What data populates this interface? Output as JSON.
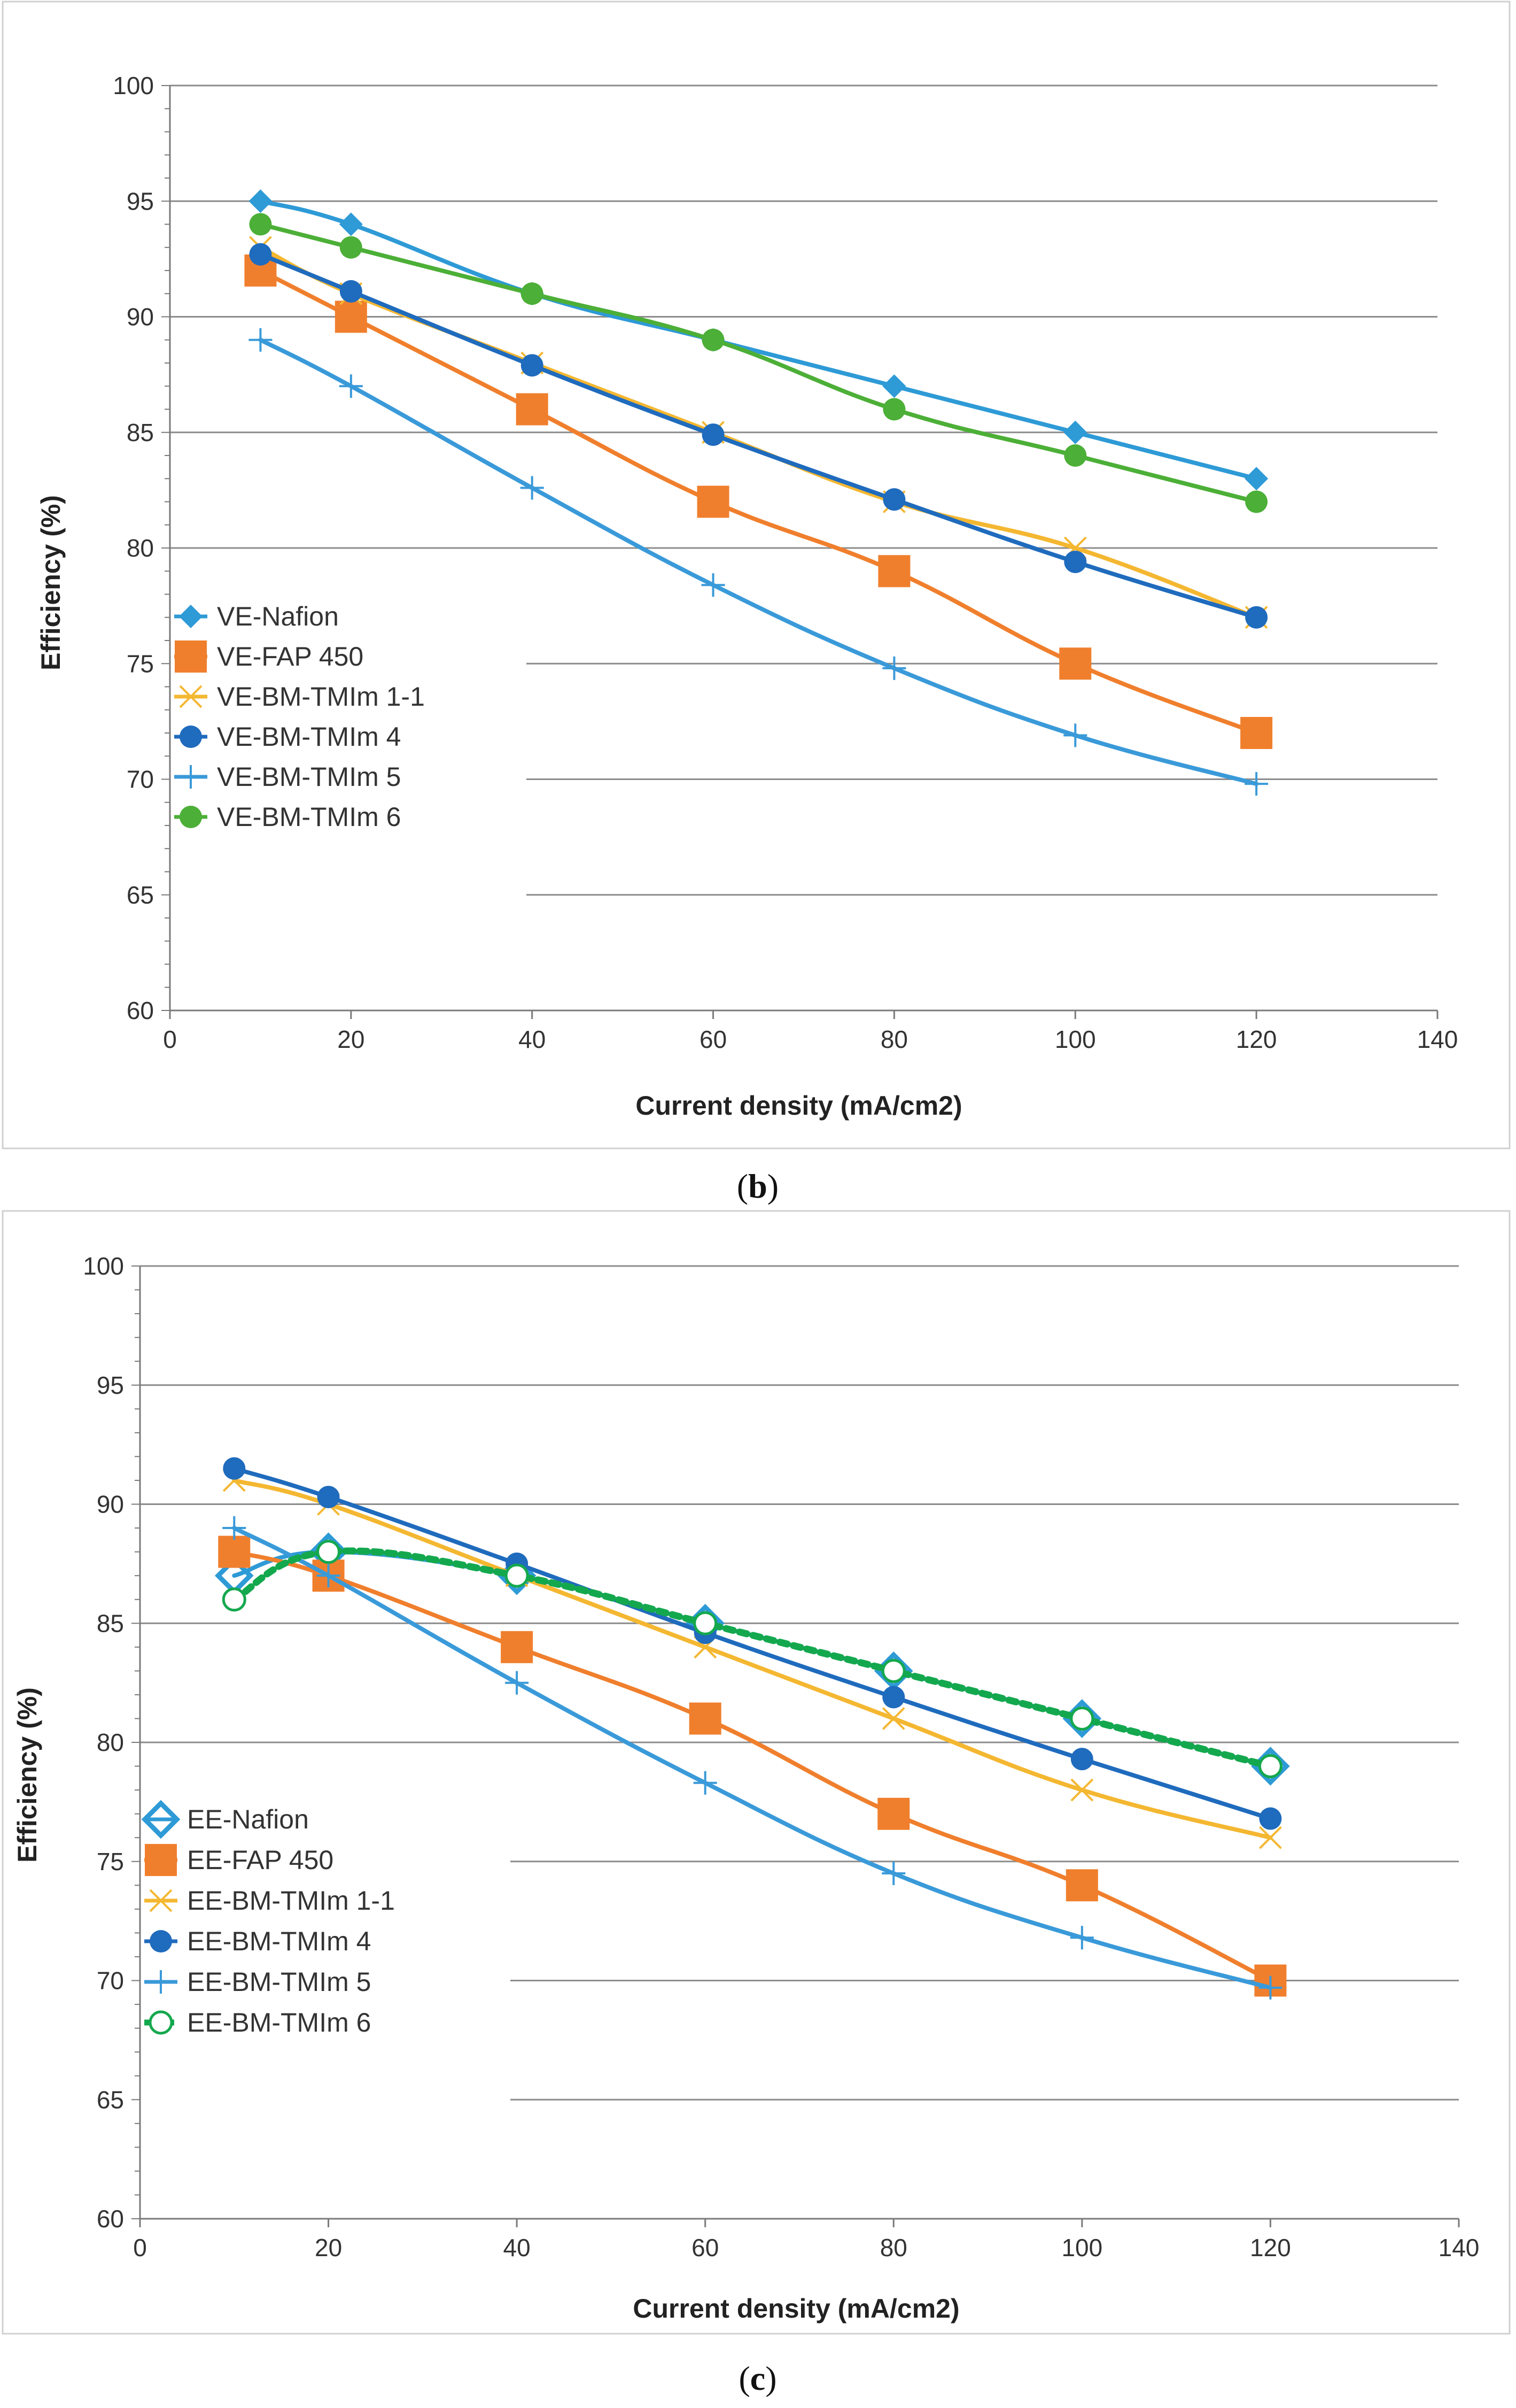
{
  "chart_data": [
    {
      "type": "line",
      "panel_label": "b",
      "xlabel": "Current density (mA/cm2)",
      "ylabel": "Efficiency (%)",
      "xlim": [
        0,
        140
      ],
      "ylim": [
        60,
        100
      ],
      "xticks": [
        0,
        20,
        40,
        60,
        80,
        100,
        120,
        140
      ],
      "yticks": [
        60,
        65,
        70,
        75,
        80,
        85,
        90,
        95,
        100
      ],
      "legend_position": "middle-left",
      "series": [
        {
          "name": "VE-Nafion",
          "color": "#2e9ad6",
          "marker": "diamond",
          "x": [
            10,
            20,
            40,
            60,
            80,
            100,
            120
          ],
          "values": [
            95,
            94,
            91,
            89,
            87,
            85,
            83
          ]
        },
        {
          "name": "VE-FAP 450",
          "color": "#f07f2d",
          "marker": "square",
          "x": [
            10,
            20,
            40,
            60,
            80,
            100,
            120
          ],
          "values": [
            92,
            90,
            86,
            82,
            79,
            75,
            72
          ]
        },
        {
          "name": "VE-BM-TMIm 1-1",
          "color": "#f4b731",
          "marker": "x",
          "x": [
            10,
            20,
            40,
            60,
            80,
            100,
            120
          ],
          "values": [
            93,
            91,
            88,
            85,
            82,
            80,
            77
          ]
        },
        {
          "name": "VE-BM-TMIm 4",
          "color": "#1f6bbd",
          "marker": "circle",
          "x": [
            10,
            20,
            40,
            60,
            80,
            100,
            120
          ],
          "values": [
            92.7,
            91.1,
            87.9,
            84.9,
            82.1,
            79.4,
            77
          ]
        },
        {
          "name": "VE-BM-TMIm 5",
          "color": "#3a9ad9",
          "marker": "plus",
          "x": [
            10,
            20,
            40,
            60,
            80,
            100,
            120
          ],
          "values": [
            89,
            87,
            82.6,
            78.4,
            74.8,
            71.9,
            69.8
          ]
        },
        {
          "name": "VE-BM-TMIm 6",
          "color": "#4caf37",
          "marker": "circle",
          "x": [
            10,
            20,
            40,
            60,
            80,
            100,
            120
          ],
          "values": [
            94,
            93,
            91,
            89,
            86,
            84,
            82
          ]
        }
      ]
    },
    {
      "type": "line",
      "panel_label": "c",
      "xlabel": "Current density (mA/cm2)",
      "ylabel": "Efficiency (%)",
      "xlim": [
        0,
        140
      ],
      "ylim": [
        60,
        100
      ],
      "xticks": [
        0,
        20,
        40,
        60,
        80,
        100,
        120,
        140
      ],
      "yticks": [
        60,
        65,
        70,
        75,
        80,
        85,
        90,
        95,
        100
      ],
      "legend_position": "middle-left",
      "series": [
        {
          "name": "EE-Nafion",
          "color": "#2e9ad6",
          "marker": "diamond-open",
          "x": [
            10,
            20,
            40,
            60,
            80,
            100,
            120
          ],
          "values": [
            87,
            88,
            87,
            85,
            83,
            81,
            79
          ]
        },
        {
          "name": "EE-FAP 450",
          "color": "#f07f2d",
          "marker": "square",
          "x": [
            10,
            20,
            40,
            60,
            80,
            100,
            120
          ],
          "values": [
            88,
            87,
            84,
            81,
            77,
            74,
            70
          ]
        },
        {
          "name": "EE-BM-TMIm 1-1",
          "color": "#f4b731",
          "marker": "x",
          "x": [
            10,
            20,
            40,
            60,
            80,
            100,
            120
          ],
          "values": [
            91,
            90,
            87,
            84,
            81,
            78,
            76
          ]
        },
        {
          "name": "EE-BM-TMIm 4",
          "color": "#1f6bbd",
          "marker": "circle",
          "x": [
            10,
            20,
            40,
            60,
            80,
            100,
            120
          ],
          "values": [
            91.5,
            90.3,
            87.5,
            84.6,
            81.9,
            79.3,
            76.8
          ]
        },
        {
          "name": "EE-BM-TMIm 5",
          "color": "#3a9ad9",
          "marker": "plus",
          "x": [
            10,
            20,
            40,
            60,
            80,
            100,
            120
          ],
          "values": [
            89,
            87,
            82.5,
            78.3,
            74.5,
            71.8,
            69.7
          ]
        },
        {
          "name": "EE-BM-TMIm 6",
          "color": "#14a84e",
          "marker": "circle-open",
          "dashed": true,
          "x": [
            10,
            20,
            40,
            60,
            80,
            100,
            120
          ],
          "values": [
            86,
            88,
            87,
            85,
            83,
            81,
            79
          ]
        }
      ]
    }
  ]
}
